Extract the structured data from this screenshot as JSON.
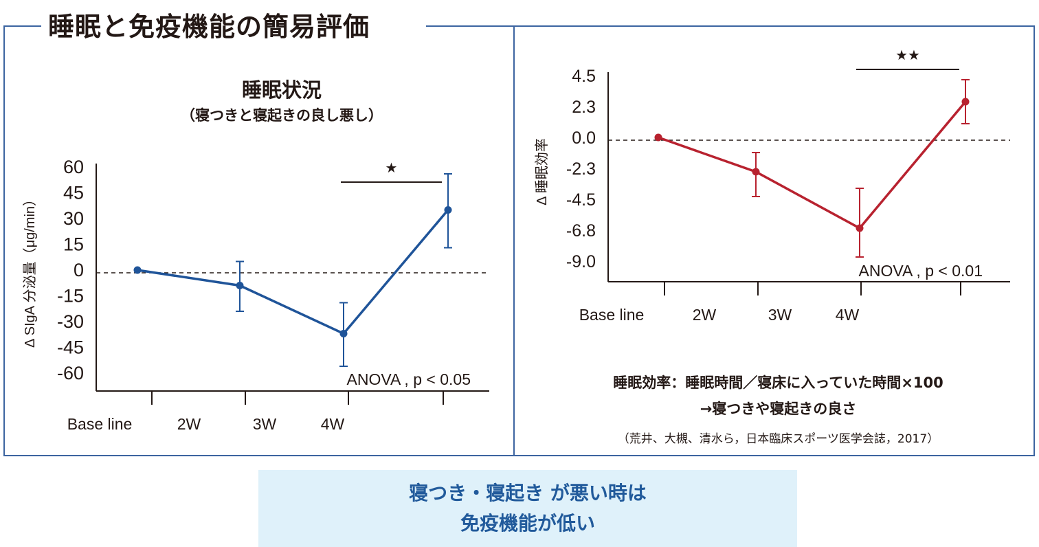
{
  "header": {
    "title": "睡眠と免疫機能の簡易評価"
  },
  "left_panel": {
    "title": "睡眠状況",
    "subtitle": "（寝つきと寝起きの良し悪し）"
  },
  "right_panel": {
    "definition_line1": "睡眠効率：睡眠時間／寝床に入っていた時間×100",
    "definition_line2": "→寝つきや寝起きの良さ",
    "citation": "（荒井、大槻、清水ら，日本臨床スポーツ医学会誌，2017）"
  },
  "conclusion": {
    "line1": "寝つき・寝起き が悪い時は",
    "line2": "免疫機能が低い"
  },
  "colors": {
    "frame": "#3c64a0",
    "left_series": "#1f5499",
    "right_series": "#b8222f",
    "conclusion_bg": "#dff1fa",
    "conclusion_text": "#215a9b"
  },
  "chart_data": [
    {
      "type": "line",
      "title": "睡眠状況",
      "ylabel": "Δ SIgA 分泌量（μg/min）",
      "categories": [
        "Base line",
        "2W",
        "3W",
        "4W"
      ],
      "yticks": [
        "60",
        "45",
        "30",
        "15",
        "0",
        "-15",
        "-30",
        "-45",
        "-60"
      ],
      "ylim": [
        -60,
        60
      ],
      "values": [
        0,
        -9,
        -37,
        35
      ],
      "error_low": [
        0,
        -24,
        -56,
        13
      ],
      "error_high": [
        0,
        5,
        -19,
        56
      ],
      "reference_line": 0,
      "significance": {
        "between": [
          "3W",
          "4W"
        ],
        "marker": "★"
      },
      "annotation": "ANOVA , p < 0.05",
      "color": "#1f5499"
    },
    {
      "type": "line",
      "ylabel": "Δ 睡眠効率",
      "categories": [
        "Base line",
        "2W",
        "3W",
        "4W"
      ],
      "yticks": [
        "4.5",
        "2.3",
        "0.0",
        "-2.3",
        "-4.5",
        "-6.8",
        "-9.0"
      ],
      "ylim": [
        -9.0,
        4.5
      ],
      "values": [
        0,
        -2.5,
        -6.6,
        2.6
      ],
      "error_low": [
        0,
        -4.3,
        -8.7,
        1.0
      ],
      "error_high": [
        0,
        -1.1,
        -3.7,
        4.2
      ],
      "reference_line": 0,
      "significance": {
        "between": [
          "3W",
          "4W"
        ],
        "marker": "★★"
      },
      "annotation": "ANOVA , p < 0.01",
      "color": "#b8222f"
    }
  ]
}
